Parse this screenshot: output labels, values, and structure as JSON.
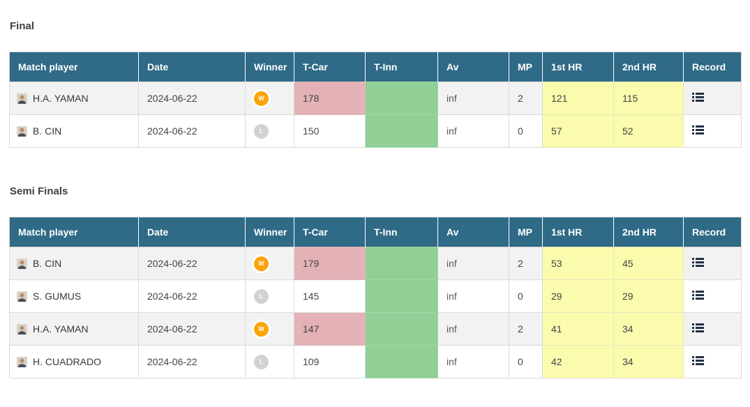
{
  "columns": [
    "Match player",
    "Date",
    "Winner",
    "T-Car",
    "T-Inn",
    "Av",
    "MP",
    "1st HR",
    "2nd HR",
    "Record"
  ],
  "colors": {
    "header_bg": "#2f6a87",
    "winner_badge": "#f9a408",
    "loser_badge": "#d2d2d2",
    "t_car_highlight": "#e4b1b6",
    "t_inn_fill": "#90d096",
    "hr_fill": "#fbfbad"
  },
  "icons": {
    "record": "list-icon",
    "avatar": "player-photo"
  },
  "sections": [
    {
      "title": "Final",
      "rows": [
        {
          "player": "H.A. YAMAN",
          "date": "2024-06-22",
          "result": "W",
          "t_car": "178",
          "t_car_highlighted": true,
          "t_inn": "",
          "av": "inf",
          "mp": "2",
          "hr_1st": "121",
          "hr_2nd": "115"
        },
        {
          "player": "B. CIN",
          "date": "2024-06-22",
          "result": "L",
          "t_car": "150",
          "t_car_highlighted": false,
          "t_inn": "",
          "av": "inf",
          "mp": "0",
          "hr_1st": "57",
          "hr_2nd": "52"
        }
      ]
    },
    {
      "title": "Semi Finals",
      "rows": [
        {
          "player": "B. CIN",
          "date": "2024-06-22",
          "result": "W",
          "t_car": "179",
          "t_car_highlighted": true,
          "t_inn": "",
          "av": "inf",
          "mp": "2",
          "hr_1st": "53",
          "hr_2nd": "45"
        },
        {
          "player": "S. GUMUS",
          "date": "2024-06-22",
          "result": "L",
          "t_car": "145",
          "t_car_highlighted": false,
          "t_inn": "",
          "av": "inf",
          "mp": "0",
          "hr_1st": "29",
          "hr_2nd": "29"
        },
        {
          "player": "H.A. YAMAN",
          "date": "2024-06-22",
          "result": "W",
          "t_car": "147",
          "t_car_highlighted": true,
          "t_inn": "",
          "av": "inf",
          "mp": "2",
          "hr_1st": "41",
          "hr_2nd": "34"
        },
        {
          "player": "H. CUADRADO",
          "date": "2024-06-22",
          "result": "L",
          "t_car": "109",
          "t_car_highlighted": false,
          "t_inn": "",
          "av": "inf",
          "mp": "0",
          "hr_1st": "42",
          "hr_2nd": "34"
        }
      ]
    }
  ]
}
